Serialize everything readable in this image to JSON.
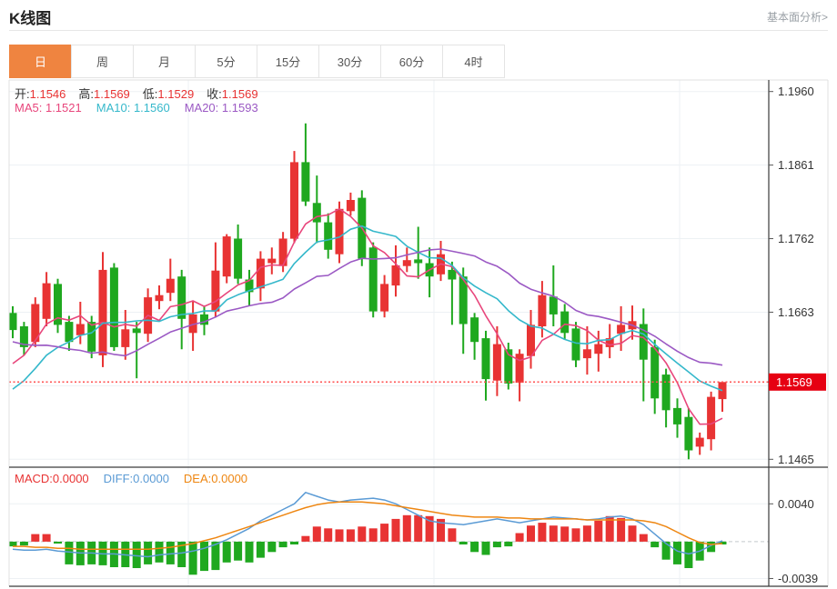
{
  "header": {
    "title": "K线图",
    "link_label": "基本面分析>"
  },
  "tabs": {
    "items": [
      "日",
      "周",
      "月",
      "5分",
      "15分",
      "30分",
      "60分",
      "4时"
    ],
    "selected_index": 0
  },
  "ohlc_bar": {
    "open_label": "开:",
    "open": "1.1546",
    "high_label": "高:",
    "high": "1.1569",
    "low_label": "低:",
    "low": "1.1529",
    "close_label": "收:",
    "close": "1.1569"
  },
  "ma_bar": {
    "ma5_label": "MA5:",
    "ma5": "1.1521",
    "ma10_label": "MA10:",
    "ma10": "1.1560",
    "ma20_label": "MA20:",
    "ma20": "1.1593"
  },
  "macd_bar": {
    "macd_label": "MACD:",
    "macd": "0.0000",
    "diff_label": "DIFF:",
    "diff": "0.0000",
    "dea_label": "DEA:",
    "dea": "0.0000"
  },
  "colors": {
    "up": "#e83333",
    "down": "#1fa81f",
    "ma5": "#e8467c",
    "ma10": "#35b8cb",
    "ma20": "#9b59c4",
    "diff": "#5b9bd5",
    "dea": "#ee8611",
    "tab_accent": "#ef8440",
    "price_tag": "#e60012",
    "grid": "#edf1f4",
    "axis_dark": "#3a3a3a",
    "frame_light": "#e0e0e0",
    "dotted_price_line": "#ff5050",
    "zero_dash": "#c4c9cc",
    "tick_text": "#333333"
  },
  "chart_data": {
    "type": "candlestick_with_macd",
    "main_panel": {
      "ylim": [
        1.1465,
        1.196
      ],
      "axis_tick_labels": [
        "1.1960",
        "1.1861",
        "1.1762",
        "1.1663",
        "1.1465"
      ],
      "gridline_prices": [
        1.196,
        1.1861,
        1.1762,
        1.1663,
        1.1564,
        1.1465
      ],
      "current_price": 1.1569,
      "current_price_label": "1.1569",
      "ma_periods": [
        5,
        10,
        20
      ],
      "candles_ohlc": [
        [
          1.1662,
          1.1671,
          1.1628,
          1.1639
        ],
        [
          1.1644,
          1.165,
          1.1605,
          1.1616
        ],
        [
          1.1623,
          1.1683,
          1.1616,
          1.1674
        ],
        [
          1.1654,
          1.1717,
          1.1644,
          1.1702
        ],
        [
          1.1701,
          1.1708,
          1.1635,
          1.1646
        ],
        [
          1.165,
          1.1658,
          1.1611,
          1.1623
        ],
        [
          1.1632,
          1.1677,
          1.162,
          1.1647
        ],
        [
          1.165,
          1.1658,
          1.1601,
          1.161
        ],
        [
          1.1605,
          1.1744,
          1.1589,
          1.172
        ],
        [
          1.1723,
          1.1729,
          1.1611,
          1.1616
        ],
        [
          1.1616,
          1.1666,
          1.1599,
          1.164
        ],
        [
          1.1641,
          1.165,
          1.1574,
          1.1635
        ],
        [
          1.1634,
          1.1695,
          1.1623,
          1.1683
        ],
        [
          1.1678,
          1.1699,
          1.1667,
          1.1686
        ],
        [
          1.1689,
          1.1735,
          1.1678,
          1.1708
        ],
        [
          1.1711,
          1.172,
          1.1613,
          1.1654
        ],
        [
          1.1635,
          1.1678,
          1.1611,
          1.166
        ],
        [
          1.166,
          1.1672,
          1.1632,
          1.1646
        ],
        [
          1.1664,
          1.1757,
          1.1656,
          1.1719
        ],
        [
          1.1711,
          1.1768,
          1.1702,
          1.1765
        ],
        [
          1.1762,
          1.1781,
          1.1701,
          1.1708
        ],
        [
          1.1707,
          1.172,
          1.1672,
          1.169
        ],
        [
          1.1695,
          1.1745,
          1.1678,
          1.1735
        ],
        [
          1.1729,
          1.175,
          1.1714,
          1.1735
        ],
        [
          1.1725,
          1.1771,
          1.1717,
          1.1762
        ],
        [
          1.1762,
          1.188,
          1.1756,
          1.1865
        ],
        [
          1.1865,
          1.1917,
          1.1806,
          1.1812
        ],
        [
          1.181,
          1.1847,
          1.1756,
          1.1784
        ],
        [
          1.1784,
          1.1796,
          1.1735,
          1.1747
        ],
        [
          1.1741,
          1.1812,
          1.1729,
          1.1802
        ],
        [
          1.1799,
          1.1824,
          1.1793,
          1.1814
        ],
        [
          1.1817,
          1.1827,
          1.1725,
          1.1735
        ],
        [
          1.175,
          1.1757,
          1.1656,
          1.1664
        ],
        [
          1.1664,
          1.1713,
          1.1656,
          1.1701
        ],
        [
          1.1699,
          1.1753,
          1.1684,
          1.1726
        ],
        [
          1.1725,
          1.175,
          1.1717,
          1.1733
        ],
        [
          1.1734,
          1.1778,
          1.1708,
          1.1729
        ],
        [
          1.1729,
          1.175,
          1.1683,
          1.1711
        ],
        [
          1.1714,
          1.1759,
          1.1705,
          1.1741
        ],
        [
          1.172,
          1.1731,
          1.1646,
          1.1707
        ],
        [
          1.1711,
          1.1723,
          1.1607,
          1.1647
        ],
        [
          1.1656,
          1.1662,
          1.1599,
          1.1623
        ],
        [
          1.1628,
          1.1638,
          1.1544,
          1.1573
        ],
        [
          1.1571,
          1.1644,
          1.155,
          1.162
        ],
        [
          1.1613,
          1.1622,
          1.1559,
          1.1567
        ],
        [
          1.1568,
          1.1613,
          1.1543,
          1.1607
        ],
        [
          1.1604,
          1.1666,
          1.1587,
          1.1646
        ],
        [
          1.1644,
          1.1705,
          1.1629,
          1.1686
        ],
        [
          1.1684,
          1.1726,
          1.1644,
          1.166
        ],
        [
          1.1664,
          1.1674,
          1.1626,
          1.1635
        ],
        [
          1.1641,
          1.165,
          1.1589,
          1.1598
        ],
        [
          1.1601,
          1.1644,
          1.1579,
          1.1613
        ],
        [
          1.1607,
          1.1638,
          1.1583,
          1.162
        ],
        [
          1.1616,
          1.1647,
          1.1601,
          1.1628
        ],
        [
          1.1634,
          1.1671,
          1.1611,
          1.1646
        ],
        [
          1.164,
          1.1672,
          1.1626,
          1.1651
        ],
        [
          1.1647,
          1.1668,
          1.1543,
          1.1599
        ],
        [
          1.1616,
          1.1626,
          1.1526,
          1.1547
        ],
        [
          1.1579,
          1.1587,
          1.1508,
          1.1531
        ],
        [
          1.1534,
          1.1547,
          1.1494,
          1.1512
        ],
        [
          1.1522,
          1.1534,
          1.1465,
          1.1477
        ],
        [
          1.1482,
          1.1501,
          1.1471,
          1.1494
        ],
        [
          1.1492,
          1.1556,
          1.1477,
          1.1549
        ],
        [
          1.1546,
          1.1569,
          1.1529,
          1.1569
        ]
      ]
    },
    "macd_panel": {
      "axis_tick_labels": [
        "0.0040",
        "-0.0039"
      ],
      "gridline_values": [
        0.004,
        -0.0039
      ],
      "histogram": [
        -0.0005,
        -0.0004,
        0.0008,
        0.0008,
        -0.0002,
        -0.0024,
        -0.0025,
        -0.0024,
        -0.0025,
        -0.0027,
        -0.0027,
        -0.0028,
        -0.0024,
        -0.0022,
        -0.0024,
        -0.0027,
        -0.0035,
        -0.0031,
        -0.003,
        -0.0022,
        -0.002,
        -0.0022,
        -0.0017,
        -0.0011,
        -0.0006,
        -0.0003,
        0.0006,
        0.0016,
        0.0014,
        0.0013,
        0.0013,
        0.0016,
        0.0014,
        0.0019,
        0.0024,
        0.0028,
        0.0028,
        0.0027,
        0.0024,
        0.0014,
        -0.0003,
        -0.0011,
        -0.0014,
        -0.0006,
        -0.0005,
        0.0009,
        0.0017,
        0.002,
        0.0017,
        0.0016,
        0.0014,
        0.0017,
        0.0022,
        0.0027,
        0.0025,
        0.0017,
        0.0008,
        -0.0006,
        -0.0019,
        -0.0024,
        -0.0028,
        -0.002,
        -0.0011,
        -0.0003
      ],
      "diff_line": [
        -0.0008,
        -0.0009,
        -0.0009,
        -0.0008,
        -0.001,
        -0.0011,
        -0.0012,
        -0.0012,
        -0.0013,
        -0.0013,
        -0.0014,
        -0.0015,
        -0.0016,
        -0.0014,
        -0.0013,
        -0.0012,
        -0.001,
        -0.0007,
        -0.0003,
        0.0002,
        0.0008,
        0.0014,
        0.0022,
        0.0028,
        0.0034,
        0.004,
        0.0052,
        0.0048,
        0.0044,
        0.0042,
        0.0044,
        0.0045,
        0.0046,
        0.0044,
        0.004,
        0.0034,
        0.0028,
        0.0022,
        0.002,
        0.0019,
        0.0018,
        0.002,
        0.0022,
        0.0024,
        0.0022,
        0.002,
        0.0022,
        0.0024,
        0.0026,
        0.0025,
        0.0024,
        0.0023,
        0.0024,
        0.0026,
        0.0027,
        0.0024,
        0.0018,
        0.0008,
        -0.0002,
        -0.001,
        -0.0013,
        -0.001,
        -0.0004,
        0.0001
      ],
      "dea_line": [
        -0.0005,
        -0.0005,
        -0.0006,
        -0.0006,
        -0.0007,
        -0.0007,
        -0.0008,
        -0.0008,
        -0.0008,
        -0.0008,
        -0.0008,
        -0.0008,
        -0.0008,
        -0.0007,
        -0.0006,
        -0.0004,
        -0.0002,
        0.0001,
        0.0004,
        0.0008,
        0.0012,
        0.0016,
        0.002,
        0.0024,
        0.0028,
        0.0032,
        0.0036,
        0.0039,
        0.0041,
        0.0042,
        0.0042,
        0.0042,
        0.0041,
        0.004,
        0.0038,
        0.0036,
        0.0034,
        0.0032,
        0.003,
        0.0028,
        0.0027,
        0.0026,
        0.0026,
        0.0026,
        0.0025,
        0.0025,
        0.0024,
        0.0024,
        0.0024,
        0.0024,
        0.0024,
        0.0023,
        0.0023,
        0.0023,
        0.0023,
        0.0023,
        0.0022,
        0.002,
        0.0016,
        0.001,
        0.0004,
        -0.0001,
        -0.0003,
        -0.0002
      ]
    }
  }
}
